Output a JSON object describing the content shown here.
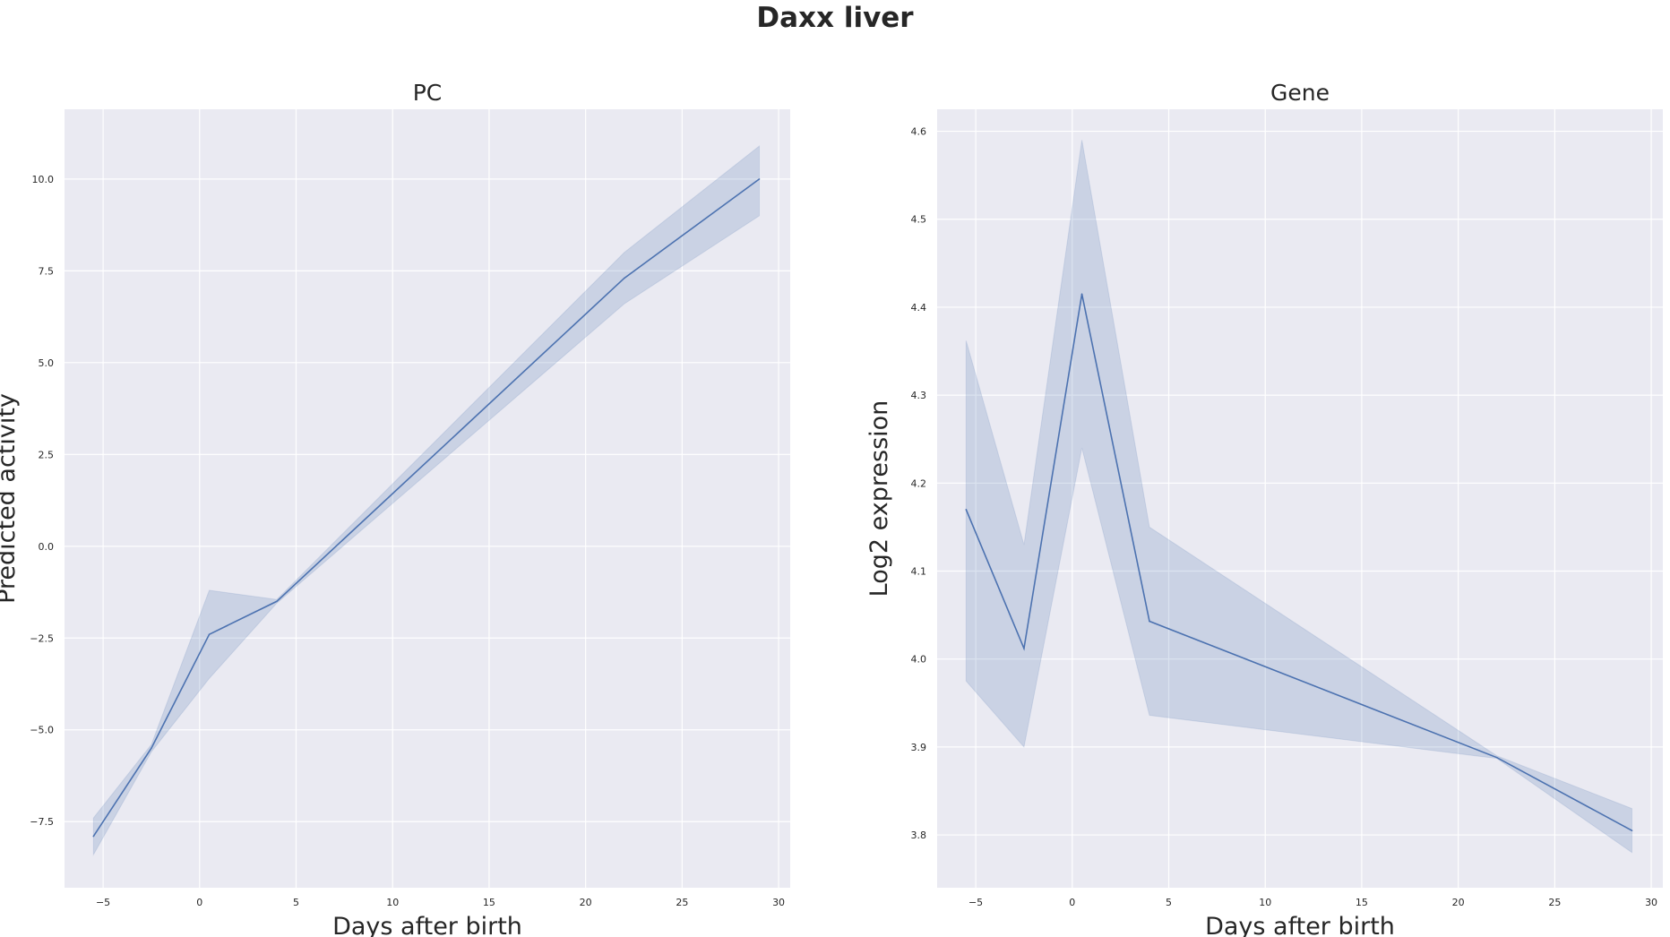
{
  "title": "Daxx liver",
  "colors": {
    "line": "#4c72b0",
    "panel_bg": "#eaeaf2",
    "grid": "#ffffff",
    "text": "#262626"
  },
  "chart_data": [
    {
      "type": "line",
      "title": "PC",
      "xlabel": "Days after birth",
      "ylabel": "Predicted activity",
      "xlim": [
        -7,
        30.6
      ],
      "ylim": [
        -9.3,
        11.9
      ],
      "xticks": [
        -5,
        0,
        5,
        10,
        15,
        20,
        25,
        30
      ],
      "xtick_labels": [
        "−5",
        "0",
        "5",
        "10",
        "15",
        "20",
        "25",
        "30"
      ],
      "yticks": [
        -7.5,
        -5.0,
        -2.5,
        0.0,
        2.5,
        5.0,
        7.5,
        10.0
      ],
      "ytick_labels": [
        "−7.5",
        "−5.0",
        "−2.5",
        "0.0",
        "2.5",
        "5.0",
        "7.5",
        "10.0"
      ],
      "grid": true,
      "x": [
        -5.5,
        -2.5,
        0.5,
        4,
        22,
        29
      ],
      "series": [
        {
          "values": [
            -7.9,
            -5.5,
            -2.4,
            -1.5,
            7.3,
            10.0
          ],
          "ci_low": [
            -8.4,
            -5.6,
            -3.6,
            -1.55,
            6.6,
            9.0
          ],
          "ci_high": [
            -7.4,
            -5.4,
            -1.2,
            -1.45,
            8.0,
            10.9
          ]
        }
      ]
    },
    {
      "type": "line",
      "title": "Gene",
      "xlabel": "Days after birth",
      "ylabel": "Log2 expression",
      "xlim": [
        -7,
        30.6
      ],
      "ylim": [
        3.74,
        4.625
      ],
      "xticks": [
        -5,
        0,
        5,
        10,
        15,
        20,
        25,
        30
      ],
      "xtick_labels": [
        "−5",
        "0",
        "5",
        "10",
        "15",
        "20",
        "25",
        "30"
      ],
      "yticks": [
        3.8,
        3.9,
        4.0,
        4.1,
        4.2,
        4.3,
        4.4,
        4.5,
        4.6
      ],
      "ytick_labels": [
        "3.8",
        "3.9",
        "4.0",
        "4.1",
        "4.2",
        "4.3",
        "4.4",
        "4.5",
        "4.6"
      ],
      "grid": true,
      "x": [
        -5.5,
        -2.5,
        0.5,
        4,
        22,
        29
      ],
      "series": [
        {
          "values": [
            4.17,
            4.012,
            4.415,
            4.043,
            3.888,
            3.805
          ],
          "ci_low": [
            3.975,
            3.9,
            4.24,
            3.936,
            3.887,
            3.78
          ],
          "ci_high": [
            4.362,
            4.13,
            4.59,
            4.15,
            3.89,
            3.83
          ]
        }
      ]
    }
  ]
}
